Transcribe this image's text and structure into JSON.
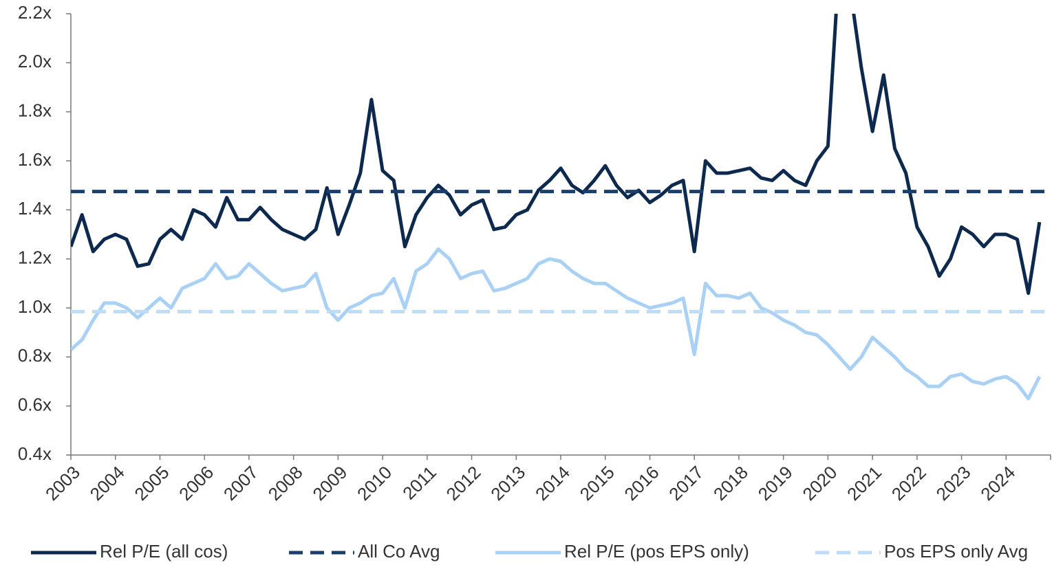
{
  "chart_data": {
    "type": "line",
    "xlim": [
      2003,
      2025
    ],
    "xticks": [
      2003,
      2004,
      2005,
      2006,
      2007,
      2008,
      2009,
      2010,
      2011,
      2012,
      2013,
      2014,
      2015,
      2016,
      2017,
      2018,
      2019,
      2020,
      2021,
      2022,
      2023,
      2024
    ],
    "ylim": [
      0.4,
      2.2
    ],
    "yticks": [
      {
        "value": 0.4,
        "label": "0.4x"
      },
      {
        "value": 0.6,
        "label": "0.6x"
      },
      {
        "value": 0.8,
        "label": "0.8x"
      },
      {
        "value": 1.0,
        "label": "1.0x"
      },
      {
        "value": 1.2,
        "label": "1.2x"
      },
      {
        "value": 1.4,
        "label": "1.4x"
      },
      {
        "value": 1.6,
        "label": "1.6x"
      },
      {
        "value": 1.8,
        "label": "1.8x"
      },
      {
        "value": 2.0,
        "label": "2.0x"
      },
      {
        "value": 2.2,
        "label": "2.2x"
      }
    ],
    "legend": "bottom",
    "series": [
      {
        "name": "Rel P/E (all cos)",
        "color": "#0d2a4e",
        "dashed": false,
        "x": [
          2003,
          2003.25,
          2003.5,
          2003.75,
          2004,
          2004.25,
          2004.5,
          2004.75,
          2005,
          2005.25,
          2005.5,
          2005.75,
          2006,
          2006.25,
          2006.5,
          2006.75,
          2007,
          2007.25,
          2007.5,
          2007.75,
          2008,
          2008.25,
          2008.5,
          2008.75,
          2009,
          2009.25,
          2009.5,
          2009.75,
          2010,
          2010.25,
          2010.5,
          2010.75,
          2011,
          2011.25,
          2011.5,
          2011.75,
          2012,
          2012.25,
          2012.5,
          2012.75,
          2013,
          2013.25,
          2013.5,
          2013.75,
          2014,
          2014.25,
          2014.5,
          2014.75,
          2015,
          2015.25,
          2015.5,
          2015.75,
          2016,
          2016.25,
          2016.5,
          2016.75,
          2017,
          2017.25,
          2017.5,
          2017.75,
          2018,
          2018.25,
          2018.5,
          2018.75,
          2019,
          2019.25,
          2019.5,
          2019.75,
          2020,
          2020.25,
          2020.5,
          2020.75,
          2021,
          2021.25,
          2021.5,
          2021.75,
          2022,
          2022.25,
          2022.5,
          2022.75,
          2023,
          2023.25,
          2023.5,
          2023.75,
          2024,
          2024.25,
          2024.5,
          2024.75
        ],
        "values": [
          1.25,
          1.38,
          1.23,
          1.28,
          1.3,
          1.28,
          1.17,
          1.18,
          1.28,
          1.32,
          1.28,
          1.4,
          1.38,
          1.33,
          1.45,
          1.36,
          1.36,
          1.41,
          1.36,
          1.32,
          1.3,
          1.28,
          1.32,
          1.49,
          1.3,
          1.42,
          1.55,
          1.85,
          1.56,
          1.52,
          1.25,
          1.38,
          1.45,
          1.5,
          1.46,
          1.38,
          1.42,
          1.44,
          1.32,
          1.33,
          1.38,
          1.4,
          1.48,
          1.52,
          1.57,
          1.5,
          1.47,
          1.52,
          1.58,
          1.5,
          1.45,
          1.48,
          1.43,
          1.46,
          1.5,
          1.52,
          1.23,
          1.6,
          1.55,
          1.55,
          1.56,
          1.57,
          1.53,
          1.52,
          1.56,
          1.52,
          1.5,
          1.6,
          1.66,
          2.4,
          2.3,
          1.98,
          1.72,
          1.95,
          1.65,
          1.55,
          1.33,
          1.25,
          1.13,
          1.2,
          1.33,
          1.3,
          1.25,
          1.3,
          1.3,
          1.28,
          1.06,
          1.35
        ]
      },
      {
        "name": "All Co Avg",
        "color": "#1b3f6b",
        "dashed": true,
        "x": [
          2003,
          2025
        ],
        "values": [
          1.475,
          1.475
        ]
      },
      {
        "name": "Rel P/E (pos EPS only)",
        "color": "#a9d0f5",
        "dashed": false,
        "x": [
          2003,
          2003.25,
          2003.5,
          2003.75,
          2004,
          2004.25,
          2004.5,
          2004.75,
          2005,
          2005.25,
          2005.5,
          2005.75,
          2006,
          2006.25,
          2006.5,
          2006.75,
          2007,
          2007.25,
          2007.5,
          2007.75,
          2008,
          2008.25,
          2008.5,
          2008.75,
          2009,
          2009.25,
          2009.5,
          2009.75,
          2010,
          2010.25,
          2010.5,
          2010.75,
          2011,
          2011.25,
          2011.5,
          2011.75,
          2012,
          2012.25,
          2012.5,
          2012.75,
          2013,
          2013.25,
          2013.5,
          2013.75,
          2014,
          2014.25,
          2014.5,
          2014.75,
          2015,
          2015.25,
          2015.5,
          2015.75,
          2016,
          2016.25,
          2016.5,
          2016.75,
          2017,
          2017.25,
          2017.5,
          2017.75,
          2018,
          2018.25,
          2018.5,
          2018.75,
          2019,
          2019.25,
          2019.5,
          2019.75,
          2020,
          2020.25,
          2020.5,
          2020.75,
          2021,
          2021.25,
          2021.5,
          2021.75,
          2022,
          2022.25,
          2022.5,
          2022.75,
          2023,
          2023.25,
          2023.5,
          2023.75,
          2024,
          2024.25,
          2024.5,
          2024.75
        ],
        "values": [
          0.83,
          0.87,
          0.95,
          1.02,
          1.02,
          1.0,
          0.96,
          1.0,
          1.04,
          1.0,
          1.08,
          1.1,
          1.12,
          1.18,
          1.12,
          1.13,
          1.18,
          1.14,
          1.1,
          1.07,
          1.08,
          1.09,
          1.14,
          1.0,
          0.95,
          1.0,
          1.02,
          1.05,
          1.06,
          1.12,
          1.0,
          1.15,
          1.18,
          1.24,
          1.2,
          1.12,
          1.14,
          1.15,
          1.07,
          1.08,
          1.1,
          1.12,
          1.18,
          1.2,
          1.19,
          1.15,
          1.12,
          1.1,
          1.1,
          1.07,
          1.04,
          1.02,
          1.0,
          1.01,
          1.02,
          1.04,
          0.81,
          1.1,
          1.05,
          1.05,
          1.04,
          1.06,
          1.0,
          0.98,
          0.95,
          0.93,
          0.9,
          0.89,
          0.85,
          0.8,
          0.75,
          0.8,
          0.88,
          0.84,
          0.8,
          0.75,
          0.72,
          0.68,
          0.68,
          0.72,
          0.73,
          0.7,
          0.69,
          0.71,
          0.72,
          0.69,
          0.63,
          0.72
        ]
      },
      {
        "name": "Pos EPS only Avg",
        "color": "#bcdcf7",
        "dashed": true,
        "x": [
          2003,
          2025
        ],
        "values": [
          0.985,
          0.985
        ]
      }
    ]
  }
}
